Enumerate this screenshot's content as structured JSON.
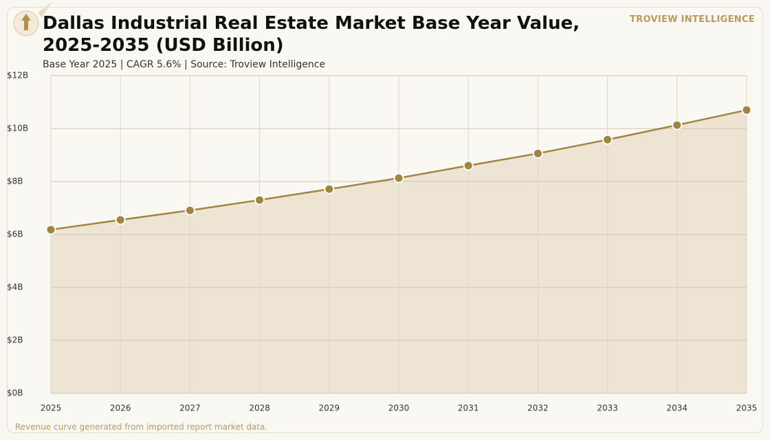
{
  "chart_data": {
    "type": "line",
    "title": "Dallas Industrial Real Estate Market Base Year Value, 2025-2035 (USD Billion)",
    "subtitle": "Base Year 2025 | CAGR 5.6% | Source: Troview Intelligence",
    "brand": "TROVIEW INTELLIGENCE",
    "note": "Revenue curve generated from imported report market data.",
    "categories": [
      "2025",
      "2026",
      "2027",
      "2028",
      "2029",
      "2030",
      "2031",
      "2032",
      "2033",
      "2034",
      "2035"
    ],
    "values": [
      6.18,
      6.55,
      6.91,
      7.3,
      7.71,
      8.13,
      8.6,
      9.06,
      9.58,
      10.13,
      10.7
    ],
    "color": "#a3843f",
    "area_color": "#ede4d3",
    "ylim": [
      0,
      12
    ],
    "yticks": [
      {
        "value": 0,
        "label": "$0B"
      },
      {
        "value": 2,
        "label": "$2B"
      },
      {
        "value": 4,
        "label": "$4B"
      },
      {
        "value": 6,
        "label": "$6B"
      },
      {
        "value": 8,
        "label": "$8B"
      },
      {
        "value": 10,
        "label": "$10B"
      },
      {
        "value": 12,
        "label": "$12B"
      }
    ],
    "grid": true
  }
}
